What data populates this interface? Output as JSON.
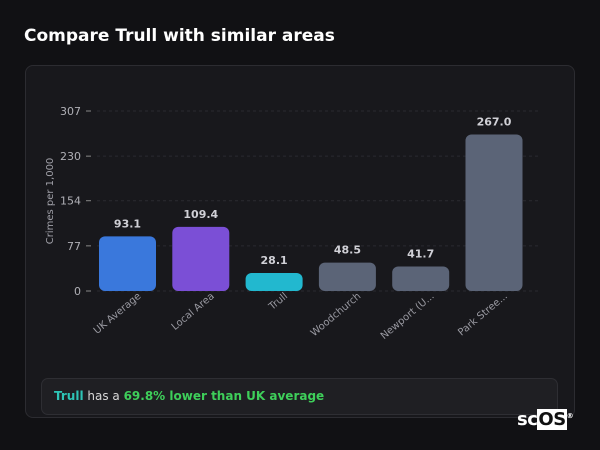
{
  "title": "Compare Trull with similar areas",
  "chart_data": {
    "type": "bar",
    "ylabel": "Crimes per 1,000",
    "ylim": [
      0,
      307
    ],
    "yticks": [
      0,
      77,
      154,
      230,
      307
    ],
    "grid": true,
    "categories": [
      "UK Average",
      "Local Area",
      "Trull",
      "Woodchurch",
      "Newport (U...",
      "Park Stree..."
    ],
    "values": [
      93.1,
      109.4,
      28.1,
      48.5,
      41.7,
      267.0
    ],
    "value_labels": [
      "93.1",
      "109.4",
      "28.1",
      "48.5",
      "41.7",
      "267.0"
    ],
    "colors": [
      "#3a78dc",
      "#7b4fd6",
      "#22b8cf",
      "#5b6477",
      "#5b6477",
      "#5b6477"
    ]
  },
  "summary": {
    "area": "Trull",
    "text_mid": " has a ",
    "comparison": "69.8% lower than UK average"
  },
  "logo": {
    "text_a": "sc",
    "text_b": "OS",
    "mark": "®"
  }
}
